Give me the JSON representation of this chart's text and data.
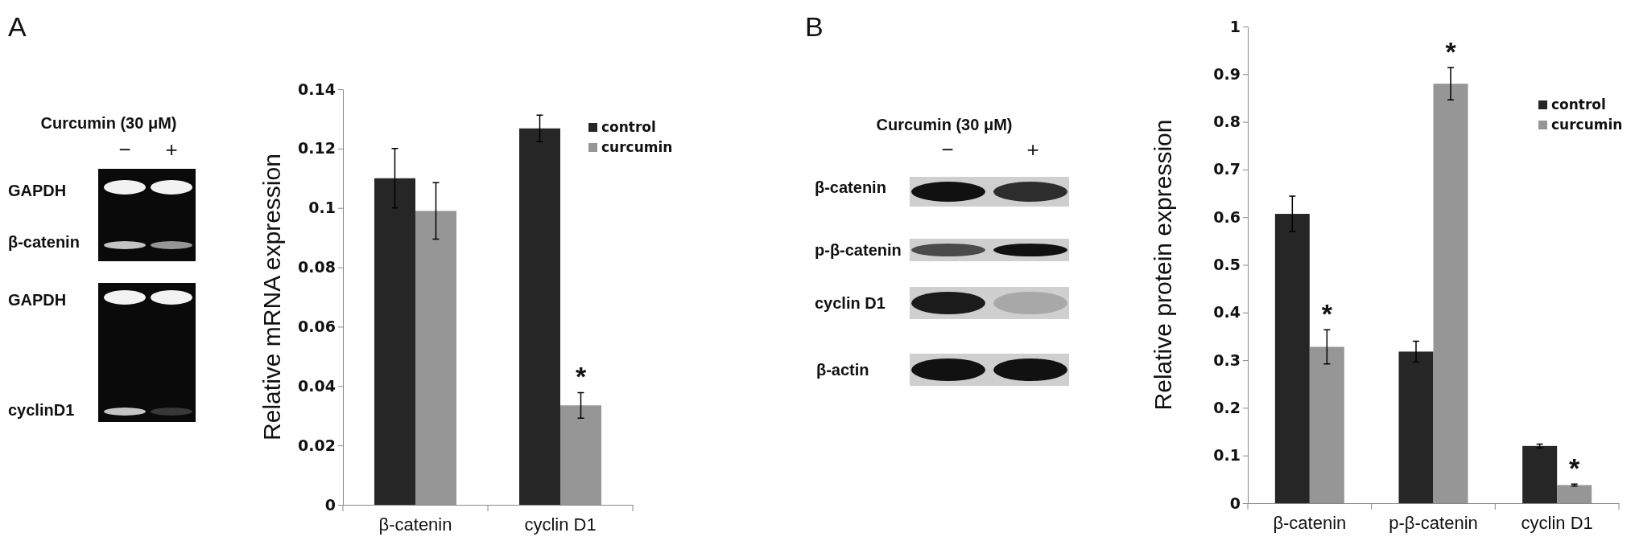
{
  "chart_data": [
    {
      "type": "bar",
      "ylabel": "Relative mRNA expression",
      "categories": [
        "β-catenin",
        "cyclin D1"
      ],
      "series": [
        {
          "name": "control",
          "color": "#262626",
          "values": [
            0.11,
            0.1268
          ],
          "errors": [
            0.01,
            0.0045
          ]
        },
        {
          "name": "curcumin",
          "color": "#969696",
          "values": [
            0.099,
            0.0335
          ],
          "errors": [
            0.0095,
            0.0043
          ]
        }
      ],
      "ylim": [
        0,
        0.14
      ],
      "yticks": [
        0,
        0.02,
        0.04,
        0.06,
        0.08,
        0.1,
        0.12,
        0.14
      ],
      "legend": "top right",
      "annotations": [
        "A",
        "Curcumin (30 μM)",
        "−",
        "+",
        "GAPDH",
        "β-catenin",
        "GAPDH",
        "cyclinD1",
        {
          "text": "*",
          "x": "cyclin D1",
          "y": 0.0335
        }
      ]
    },
    {
      "type": "bar",
      "ylabel": "Relative protein expression",
      "categories": [
        "β-catenin",
        "p-β-catenin",
        "cyclin D1"
      ],
      "series": [
        {
          "name": "control",
          "color": "#262626",
          "values": [
            0.607,
            0.318,
            0.12
          ],
          "errors": [
            0.037,
            0.022,
            0.004
          ]
        },
        {
          "name": "curcumin",
          "color": "#969696",
          "values": [
            0.328,
            0.88,
            0.038
          ],
          "errors": [
            0.036,
            0.034,
            0.002
          ]
        }
      ],
      "ylim": [
        0,
        1
      ],
      "yticks": [
        0,
        0.1,
        0.2,
        0.3,
        0.4,
        0.5,
        0.6,
        0.7,
        0.8,
        0.9,
        1
      ],
      "legend": "top right",
      "annotations": [
        "B",
        "Curcumin (30 μM)",
        "−",
        "+",
        "β-catenin",
        "p-β-catenin",
        "cyclin D1",
        "β-actin",
        {
          "text": "*",
          "x": "β-catenin",
          "y": 0.328
        },
        {
          "text": "*",
          "x": "p-β-catenin",
          "y": 0.88
        },
        {
          "text": "*",
          "x": "cyclin D1",
          "y": 0.038
        }
      ]
    }
  ]
}
